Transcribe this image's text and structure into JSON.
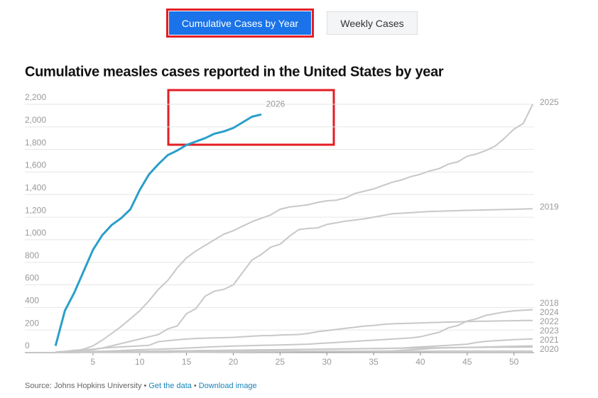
{
  "tabs": [
    "Cumulative Cases by Year",
    "Weekly Cases"
  ],
  "chart_data": {
    "type": "line",
    "title": "Cumulative measles cases reported in the United States by year",
    "x": [
      1,
      2,
      3,
      4,
      5,
      6,
      7,
      8,
      9,
      10,
      11,
      12,
      13,
      14,
      15,
      16,
      17,
      18,
      19,
      20,
      21,
      22,
      23,
      24,
      25,
      26,
      27,
      28,
      29,
      30,
      31,
      32,
      33,
      34,
      35,
      36,
      37,
      38,
      39,
      40,
      41,
      42,
      43,
      44,
      45,
      46,
      47,
      48,
      49,
      50,
      51,
      52
    ],
    "xlim": [
      0,
      52
    ],
    "xticks": [
      5,
      10,
      15,
      20,
      25,
      30,
      35,
      40,
      45,
      50
    ],
    "ylim": [
      0,
      2200
    ],
    "yticks": [
      0,
      200,
      400,
      600,
      800,
      {
        "value": 1000,
        "label": "1,000"
      },
      {
        "value": 1200,
        "label": "1,200"
      },
      {
        "value": 1400,
        "label": "1,400"
      },
      {
        "value": 1600,
        "label": "1,600"
      },
      {
        "value": 1800,
        "label": "1,800"
      },
      {
        "value": 2000,
        "label": "2,000"
      },
      {
        "value": 2200,
        "label": "2,200"
      }
    ],
    "grid": true,
    "series": [
      {
        "name": "2026",
        "color": "#2a9fc9",
        "values": [
          60,
          370,
          530,
          720,
          910,
          1040,
          1130,
          1190,
          1270,
          1440,
          1580,
          1670,
          1750,
          1790,
          1840,
          1870,
          1900,
          1940,
          1960,
          1990,
          2040,
          2090,
          2110,
          null,
          null,
          null,
          null,
          null,
          null,
          null,
          null,
          null,
          null,
          null,
          null,
          null,
          null,
          null,
          null,
          null,
          null,
          null,
          null,
          null,
          null,
          null,
          null,
          null,
          null,
          null,
          null,
          null
        ]
      },
      {
        "name": "2025",
        "color": "#c8c8c8",
        "values": [
          5,
          10,
          15,
          30,
          60,
          110,
          170,
          230,
          300,
          370,
          460,
          560,
          640,
          750,
          840,
          900,
          950,
          1000,
          1050,
          1080,
          1120,
          1160,
          1190,
          1220,
          1270,
          1290,
          1300,
          1310,
          1330,
          1345,
          1350,
          1370,
          1410,
          1430,
          1450,
          1480,
          1510,
          1530,
          1560,
          1580,
          1610,
          1630,
          1670,
          1690,
          1740,
          1760,
          1790,
          1830,
          1900,
          1980,
          2030,
          2200
        ]
      },
      {
        "name": "2019",
        "color": "#c8c8c8",
        "values": [
          5,
          10,
          15,
          20,
          25,
          40,
          60,
          80,
          100,
          120,
          140,
          160,
          210,
          235,
          345,
          390,
          500,
          545,
          560,
          600,
          710,
          820,
          870,
          935,
          960,
          1030,
          1090,
          1100,
          1105,
          1135,
          1150,
          1165,
          1175,
          1185,
          1200,
          1215,
          1230,
          1235,
          1240,
          1245,
          1250,
          1252,
          1255,
          1258,
          1260,
          1262,
          1264,
          1266,
          1268,
          1270,
          1272,
          1274
        ]
      },
      {
        "name": "2018",
        "color": "#c8c8c8",
        "values": [
          2,
          4,
          6,
          8,
          10,
          12,
          15,
          18,
          22,
          25,
          28,
          30,
          33,
          36,
          40,
          44,
          48,
          52,
          55,
          58,
          60,
          62,
          64,
          66,
          68,
          70,
          72,
          75,
          80,
          85,
          90,
          95,
          100,
          105,
          110,
          115,
          120,
          125,
          130,
          140,
          160,
          180,
          220,
          240,
          280,
          300,
          330,
          345,
          360,
          370,
          375,
          380
        ]
      },
      {
        "name": "2024",
        "color": "#c8c8c8",
        "values": [
          5,
          10,
          20,
          25,
          30,
          40,
          45,
          50,
          55,
          60,
          65,
          97,
          105,
          113,
          120,
          125,
          128,
          130,
          132,
          135,
          140,
          145,
          150,
          151,
          155,
          158,
          160,
          170,
          185,
          195,
          205,
          215,
          225,
          235,
          240,
          250,
          255,
          258,
          260,
          262,
          265,
          268,
          270,
          272,
          275,
          277,
          278,
          280,
          281,
          282,
          284,
          285
        ]
      },
      {
        "name": "2022",
        "color": "#c8c8c8",
        "values": [
          1,
          2,
          3,
          4,
          5,
          6,
          7,
          8,
          9,
          10,
          11,
          12,
          13,
          14,
          15,
          16,
          17,
          18,
          19,
          20,
          21,
          22,
          23,
          24,
          25,
          26,
          27,
          28,
          29,
          30,
          31,
          32,
          33,
          34,
          35,
          36,
          38,
          40,
          45,
          50,
          55,
          60,
          65,
          70,
          75,
          90,
          100,
          105,
          110,
          115,
          118,
          121
        ]
      },
      {
        "name": "2023",
        "color": "#c8c8c8",
        "values": [
          2,
          3,
          4,
          5,
          6,
          7,
          8,
          9,
          10,
          11,
          12,
          13,
          14,
          15,
          16,
          17,
          18,
          19,
          20,
          21,
          22,
          23,
          24,
          25,
          26,
          27,
          28,
          29,
          30,
          31,
          32,
          33,
          34,
          35,
          36,
          37,
          38,
          39,
          40,
          41,
          42,
          43,
          44,
          45,
          46,
          48,
          50,
          52,
          54,
          56,
          58,
          59
        ]
      },
      {
        "name": "2021",
        "color": "#c8c8c8",
        "values": [
          0,
          0,
          0,
          1,
          1,
          1,
          1,
          1,
          1,
          2,
          2,
          2,
          2,
          3,
          3,
          3,
          4,
          4,
          5,
          5,
          6,
          6,
          7,
          7,
          8,
          8,
          9,
          9,
          10,
          10,
          11,
          11,
          12,
          12,
          13,
          14,
          15,
          20,
          25,
          30,
          35,
          40,
          42,
          44,
          45,
          46,
          47,
          47,
          48,
          48,
          49,
          49
        ]
      },
      {
        "name": "2020",
        "color": "#c8c8c8",
        "values": [
          1,
          2,
          3,
          4,
          5,
          6,
          7,
          8,
          9,
          10,
          11,
          12,
          12,
          12,
          12,
          12,
          12,
          12,
          12,
          12,
          12,
          12,
          12,
          12,
          12,
          12,
          12,
          12,
          12,
          12,
          12,
          12,
          12,
          12,
          12,
          12,
          12,
          12,
          12,
          12,
          12,
          13,
          13,
          13,
          13,
          13,
          13,
          13,
          13,
          13,
          13,
          13
        ]
      }
    ]
  },
  "footer": {
    "source": "Source: Johns Hopkins University",
    "separator": "•",
    "links": [
      "Get the data",
      "Download image"
    ]
  }
}
